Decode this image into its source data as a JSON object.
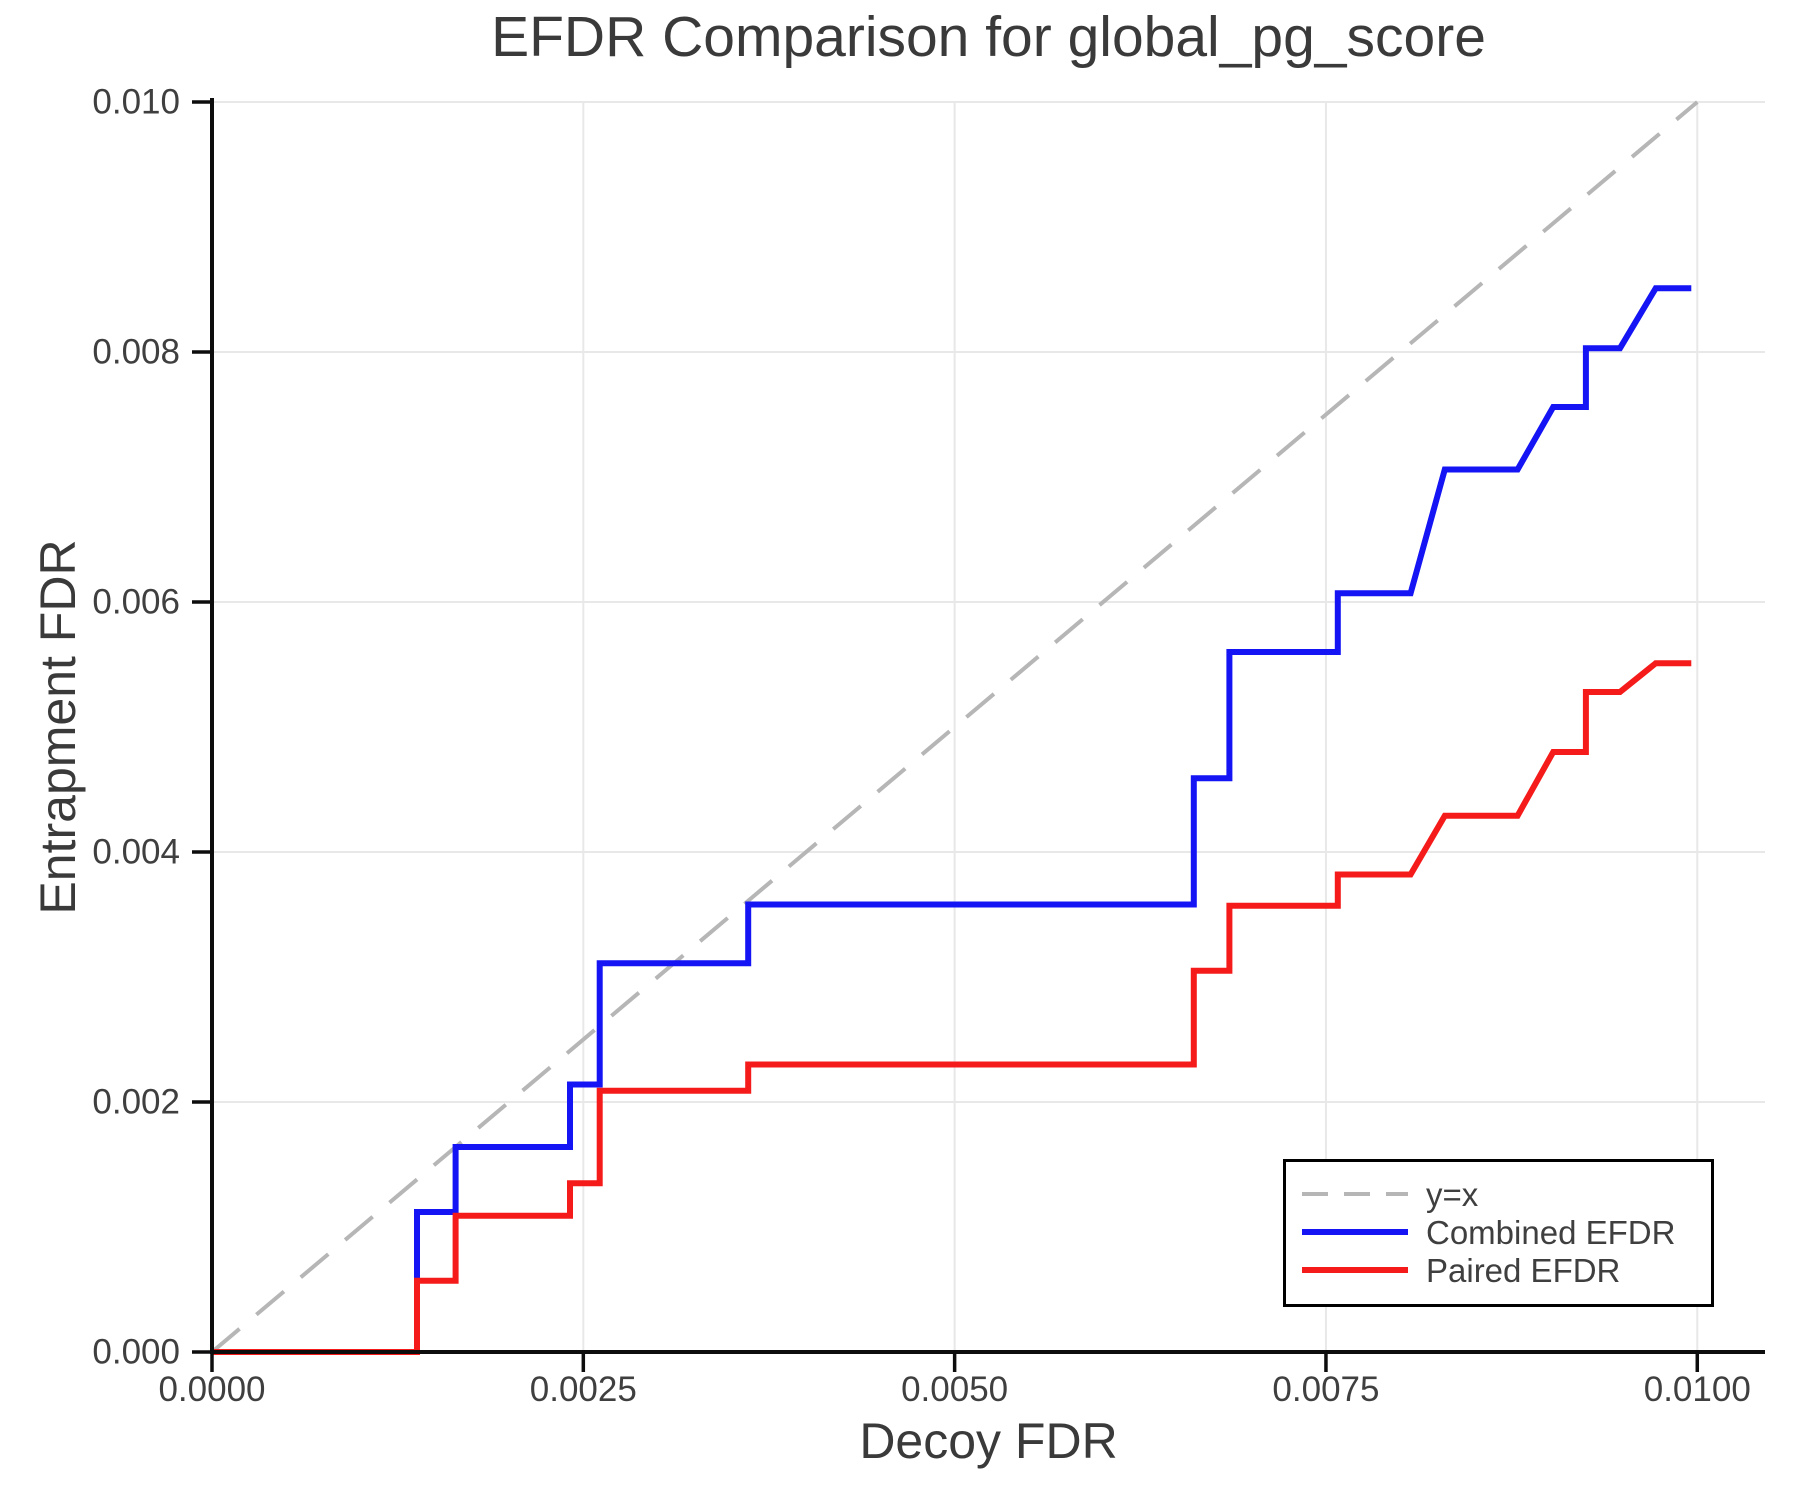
{
  "chart_data": {
    "type": "line",
    "title": "EFDR Comparison for global_pg_score",
    "xlabel": "Decoy FDR",
    "ylabel": "Entrapment FDR",
    "xlim": [
      0,
      0.010456
    ],
    "ylim": [
      0,
      0.01
    ],
    "xticks": [
      0,
      0.0025,
      0.005,
      0.0075,
      0.01
    ],
    "xtick_labels": [
      "0.0000",
      "0.0025",
      "0.0050",
      "0.0075",
      "0.0100"
    ],
    "yticks": [
      0,
      0.002,
      0.004,
      0.006,
      0.008,
      0.01
    ],
    "ytick_labels": [
      "0.000",
      "0.002",
      "0.004",
      "0.006",
      "0.008",
      "0.010"
    ],
    "grid": true,
    "legend_position": "lower right",
    "colors": {
      "diagonal": "#b6b6b6",
      "combined": "#1414f5",
      "paired": "#f51b1b",
      "gridline": "#e8e8e8",
      "spine": "#0d0d0d",
      "tick_text": "#3f3f3f"
    },
    "series": [
      {
        "name": "y=x",
        "style": "dashed",
        "color": "#b6b6b6",
        "points": [
          [
            0,
            0
          ],
          [
            0.01,
            0.01
          ]
        ]
      },
      {
        "name": "Combined EFDR",
        "style": "solid",
        "color": "#1414f5",
        "points": [
          [
            0,
            0
          ],
          [
            0.00138,
            0
          ],
          [
            0.00138,
            0.00112
          ],
          [
            0.00164,
            0.00112
          ],
          [
            0.00164,
            0.00164
          ],
          [
            0.00241,
            0.00164
          ],
          [
            0.00241,
            0.00214
          ],
          [
            0.00261,
            0.00214
          ],
          [
            0.00261,
            0.00311
          ],
          [
            0.00361,
            0.00311
          ],
          [
            0.00361,
            0.00358
          ],
          [
            0.00661,
            0.00358
          ],
          [
            0.00661,
            0.00459
          ],
          [
            0.00685,
            0.00459
          ],
          [
            0.00685,
            0.0056
          ],
          [
            0.00758,
            0.0056
          ],
          [
            0.00758,
            0.00607
          ],
          [
            0.00807,
            0.00607
          ],
          [
            0.0083,
            0.00706
          ],
          [
            0.00879,
            0.00706
          ],
          [
            0.00903,
            0.00756
          ],
          [
            0.00925,
            0.00756
          ],
          [
            0.00925,
            0.00803
          ],
          [
            0.00948,
            0.00803
          ],
          [
            0.00972,
            0.00851
          ],
          [
            0.00996,
            0.00851
          ]
        ]
      },
      {
        "name": "Paired EFDR",
        "style": "solid",
        "color": "#f51b1b",
        "points": [
          [
            0,
            0
          ],
          [
            0.00138,
            0
          ],
          [
            0.00138,
            0.00057
          ],
          [
            0.00164,
            0.00057
          ],
          [
            0.00164,
            0.00109
          ],
          [
            0.00241,
            0.00109
          ],
          [
            0.00241,
            0.00135
          ],
          [
            0.00261,
            0.00135
          ],
          [
            0.00261,
            0.00209
          ],
          [
            0.00361,
            0.00209
          ],
          [
            0.00361,
            0.0023
          ],
          [
            0.00661,
            0.0023
          ],
          [
            0.00661,
            0.00305
          ],
          [
            0.00685,
            0.00305
          ],
          [
            0.00685,
            0.00357
          ],
          [
            0.00758,
            0.00357
          ],
          [
            0.00758,
            0.00382
          ],
          [
            0.00807,
            0.00382
          ],
          [
            0.0083,
            0.00429
          ],
          [
            0.00879,
            0.00429
          ],
          [
            0.00903,
            0.0048
          ],
          [
            0.00925,
            0.0048
          ],
          [
            0.00925,
            0.00528
          ],
          [
            0.00948,
            0.00528
          ],
          [
            0.00972,
            0.00551
          ],
          [
            0.00996,
            0.00551
          ]
        ]
      }
    ]
  }
}
